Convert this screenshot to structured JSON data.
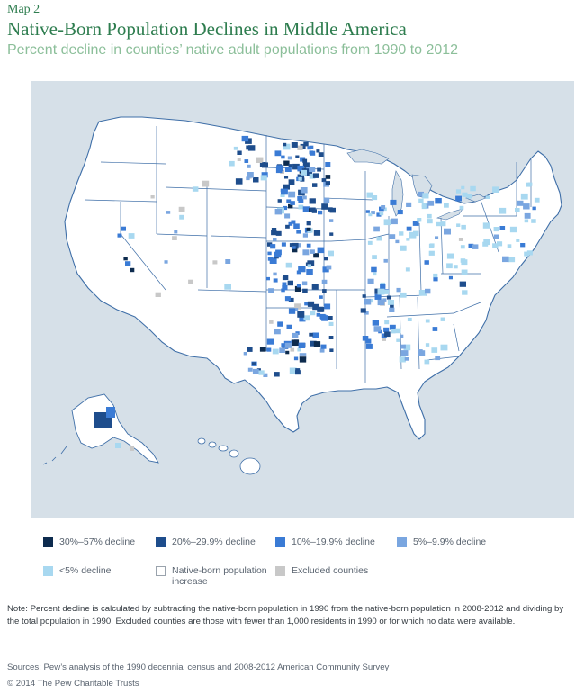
{
  "header": {
    "kicker": "Map 2",
    "title": "Native-Born Population Declines in Middle America",
    "subtitle": "Percent decline in counties’ native adult populations from 1990 to 2012"
  },
  "colors": {
    "water": "#d6e0e8",
    "land": "#ffffff",
    "border": "#3f6fa8",
    "decline_30_57": "#0d2b4e",
    "decline_20_29": "#1e4d8c",
    "decline_10_19": "#3a7bd5",
    "decline_5_9": "#7aa6e0",
    "decline_lt5": "#a8d8f0",
    "increase": "#ffffff",
    "excluded": "#c8c8c8"
  },
  "legend": {
    "items": [
      {
        "label": "30%–57% decline",
        "color": "#0d2b4e"
      },
      {
        "label": "20%–29.9% decline",
        "color": "#1e4d8c"
      },
      {
        "label": "10%–19.9% decline",
        "color": "#3a7bd5"
      },
      {
        "label": "5%–9.9% decline",
        "color": "#7aa6e0"
      },
      {
        "label": "<5% decline",
        "color": "#a8d8f0"
      },
      {
        "label": "Native-born population increase",
        "color": "#ffffff"
      },
      {
        "label": "Excluded counties",
        "color": "#c8c8c8"
      }
    ]
  },
  "footer": {
    "note": "Note: Percent decline is calculated by subtracting the native-born population in 1990 from the native-born population in 2008-2012 and dividing by the total population in 1990. Excluded counties are those with fewer than 1,000 residents in 1990 or for which no data were available.",
    "sources": "Sources: Pew’s analysis of the 1990 decennial census and 2008-2012 American Community Survey",
    "copyright": "© 2014 The Pew Charitable Trusts"
  }
}
